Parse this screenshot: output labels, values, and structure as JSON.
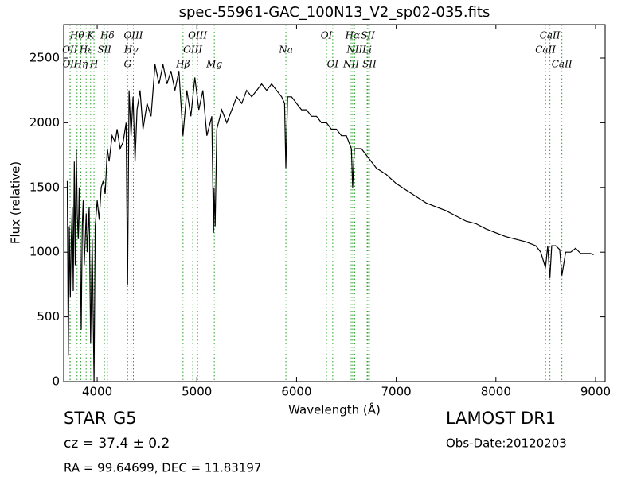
{
  "chart_data": {
    "type": "line",
    "title": "spec-55961-GAC_100N13_V2_sp02-035.fits",
    "xlabel": "Wavelength (Å)",
    "ylabel": "Flux (relative)",
    "xlim": [
      3664,
      9096
    ],
    "ylim": [
      0,
      2758
    ],
    "xticks": [
      4000,
      5000,
      6000,
      7000,
      8000,
      9000
    ],
    "yticks": [
      0,
      500,
      1000,
      1500,
      2000,
      2500
    ],
    "color": "#000000",
    "line_color": "#2ca02c",
    "x": [
      3700,
      3710,
      3720,
      3730,
      3740,
      3750,
      3760,
      3770,
      3780,
      3790,
      3800,
      3810,
      3820,
      3830,
      3840,
      3850,
      3860,
      3870,
      3890,
      3900,
      3920,
      3934,
      3950,
      3968,
      3980,
      4000,
      4020,
      4040,
      4060,
      4080,
      4102,
      4120,
      4150,
      4180,
      4200,
      4230,
      4260,
      4290,
      4305,
      4320,
      4340,
      4360,
      4380,
      4400,
      4430,
      4460,
      4500,
      4540,
      4580,
      4620,
      4660,
      4700,
      4740,
      4780,
      4820,
      4861,
      4900,
      4940,
      4980,
      5020,
      5060,
      5100,
      5150,
      5167,
      5172,
      5183,
      5200,
      5250,
      5300,
      5350,
      5400,
      5450,
      5500,
      5550,
      5600,
      5650,
      5700,
      5750,
      5800,
      5850,
      5880,
      5893,
      5910,
      5950,
      6000,
      6050,
      6100,
      6150,
      6200,
      6250,
      6300,
      6350,
      6400,
      6450,
      6500,
      6550,
      6563,
      6580,
      6650,
      6700,
      6800,
      6900,
      7000,
      7100,
      7200,
      7300,
      7400,
      7500,
      7600,
      7700,
      7800,
      7900,
      8000,
      8100,
      8200,
      8300,
      8400,
      8450,
      8498,
      8520,
      8542,
      8560,
      8600,
      8640,
      8662,
      8700,
      8750,
      8800,
      8850,
      8900,
      8950,
      8980
    ],
    "values": [
      1550,
      200,
      1200,
      650,
      1100,
      1350,
      700,
      1700,
      900,
      1800,
      1300,
      1100,
      1500,
      1000,
      400,
      1200,
      1400,
      900,
      1300,
      1000,
      1350,
      300,
      1100,
      0,
      1200,
      1400,
      1250,
      1500,
      1550,
      1450,
      1800,
      1700,
      1900,
      1850,
      1950,
      1800,
      1850,
      2000,
      750,
      2250,
      1900,
      2200,
      1700,
      2100,
      2250,
      1950,
      2150,
      2050,
      2450,
      2300,
      2450,
      2300,
      2400,
      2250,
      2400,
      1900,
      2250,
      2050,
      2350,
      2100,
      2250,
      1900,
      2050,
      1150,
      1500,
      1200,
      1950,
      2100,
      2000,
      2100,
      2200,
      2150,
      2250,
      2200,
      2250,
      2300,
      2250,
      2300,
      2250,
      2200,
      2150,
      1650,
      2200,
      2200,
      2150,
      2100,
      2100,
      2050,
      2050,
      2000,
      2000,
      1950,
      1950,
      1900,
      1900,
      1800,
      1500,
      1800,
      1800,
      1750,
      1650,
      1600,
      1530,
      1480,
      1430,
      1380,
      1350,
      1320,
      1280,
      1240,
      1220,
      1180,
      1150,
      1120,
      1100,
      1080,
      1050,
      1000,
      880,
      1050,
      800,
      1050,
      1050,
      1020,
      820,
      1000,
      1000,
      1030,
      990,
      990,
      990,
      980
    ],
    "line_rows": [
      [
        {
          "label": "Hθ",
          "x": 3798
        },
        {
          "label": "K",
          "x": 3934
        },
        {
          "label": "Hδ",
          "x": 4102
        },
        {
          "label": "OIII",
          "x": 4363
        },
        {
          "label": "OIII",
          "x": 5007
        },
        {
          "label": "OI",
          "x": 6300
        },
        {
          "label": "Hα",
          "x": 6563
        },
        {
          "label": "SII",
          "x": 6716
        },
        {
          "label": "CaII",
          "x": 8542
        }
      ],
      [
        {
          "label": "OII",
          "x": 3727
        },
        {
          "label": "Hε",
          "x": 3889
        },
        {
          "label": "SII",
          "x": 4072
        },
        {
          "label": "Hγ",
          "x": 4340
        },
        {
          "label": "OIII",
          "x": 4959
        },
        {
          "label": "Na",
          "x": 5893
        },
        {
          "label": "NII",
          "x": 6583
        },
        {
          "label": "Li",
          "x": 6708
        },
        {
          "label": "CaII",
          "x": 8498
        }
      ],
      [
        {
          "label": "OII",
          "x": 3729
        },
        {
          "label": "Hη",
          "x": 3835
        },
        {
          "label": "H",
          "x": 3968
        },
        {
          "label": "G",
          "x": 4305
        },
        {
          "label": "Hβ",
          "x": 4861
        },
        {
          "label": "Mg",
          "x": 5175
        },
        {
          "label": "OI",
          "x": 6363
        },
        {
          "label": "NII",
          "x": 6548
        },
        {
          "label": "SII",
          "x": 6731
        },
        {
          "label": "CaII",
          "x": 8662
        }
      ]
    ],
    "class": "STAR",
    "subclass": "G5",
    "redshift": "cz = 37.4 ± 0.2",
    "coords": "RA = 99.64699, DEC = 11.83197",
    "survey": "LAMOST DR1",
    "obs_date": "Obs-Date:20120203"
  }
}
